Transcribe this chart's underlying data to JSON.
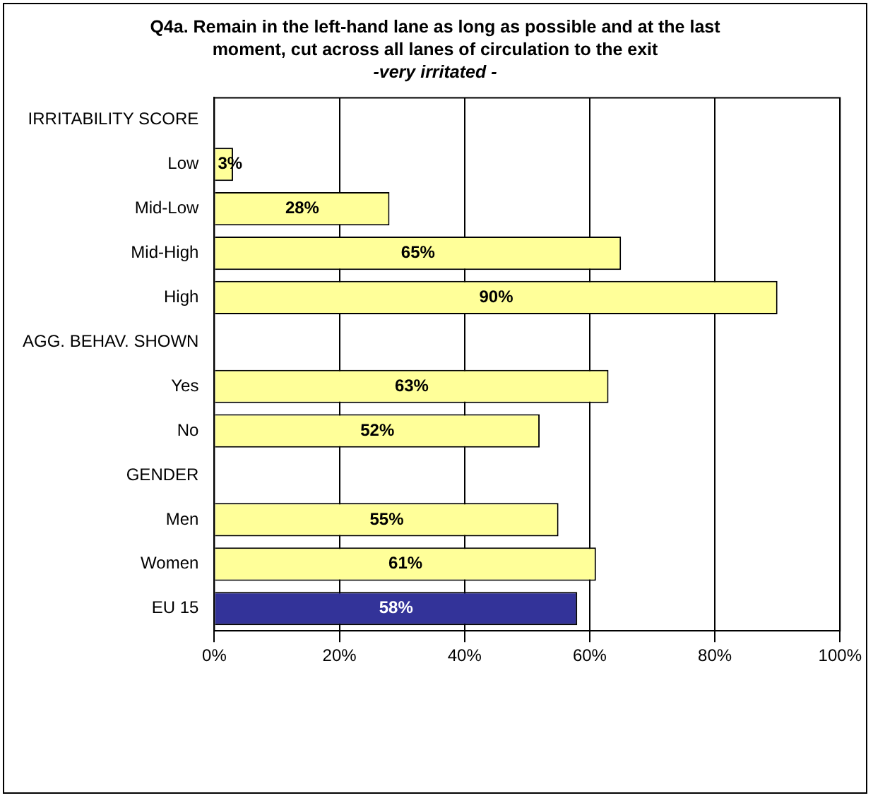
{
  "chart_data": {
    "type": "bar",
    "orientation": "horizontal",
    "title": "Q4a. Remain in the left-hand lane as long as possible and at the last moment, cut across all lanes of circulation to the exit",
    "subtitle": "-very irritated -",
    "categories": [
      "IRRITABILITY SCORE",
      "Low",
      "Mid-Low",
      "Mid-High",
      "High",
      "AGG. BEHAV. SHOWN",
      "Yes",
      "No",
      "GENDER",
      "Men",
      "Women",
      "EU 15"
    ],
    "values": [
      null,
      3,
      28,
      65,
      90,
      null,
      63,
      52,
      null,
      55,
      61,
      58
    ],
    "colors": [
      "#ffff99",
      "#ffff99",
      "#ffff99",
      "#ffff99",
      "#ffff99",
      "#ffff99",
      "#ffff99",
      "#ffff99",
      "#ffff99",
      "#ffff99",
      "#ffff99",
      "#333399"
    ],
    "value_labels": [
      null,
      "3%",
      "28%",
      "65%",
      "90%",
      null,
      "63%",
      "52%",
      null,
      "55%",
      "61%",
      "58%"
    ],
    "xlim": [
      0,
      100
    ],
    "xticks": [
      {
        "value": 0,
        "label": "0%"
      },
      {
        "value": 20,
        "label": "20%"
      },
      {
        "value": 40,
        "label": "40%"
      },
      {
        "value": 60,
        "label": "60%"
      },
      {
        "value": 80,
        "label": "80%"
      },
      {
        "value": 100,
        "label": "100%"
      }
    ],
    "grid": "x",
    "legend": false
  }
}
